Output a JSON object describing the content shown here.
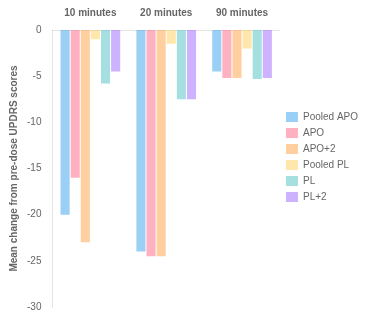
{
  "chart_data": {
    "type": "bar",
    "categories": [
      "10 minutes",
      "20 minutes",
      "90 minutes"
    ],
    "series": [
      {
        "name": "Pooled APO",
        "values": [
          -20.0,
          -24.0,
          -4.5
        ]
      },
      {
        "name": "APO",
        "values": [
          -16.0,
          -24.5,
          -5.2
        ]
      },
      {
        "name": "APO+2",
        "values": [
          -23.0,
          -24.5,
          -5.2
        ]
      },
      {
        "name": "Pooled PL",
        "values": [
          -1.0,
          -1.5,
          -2.0
        ]
      },
      {
        "name": "PL",
        "values": [
          -5.8,
          -7.5,
          -5.3
        ]
      },
      {
        "name": "PL+2",
        "values": [
          -4.5,
          -7.5,
          -5.2
        ]
      }
    ],
    "ylabel": "Mean change from pre-dose UPDRS scores",
    "ylim": [
      -30,
      0
    ],
    "yticks": [
      0,
      -5,
      -10,
      -15,
      -20,
      -25,
      -30
    ],
    "grid": false,
    "legend": "right"
  }
}
